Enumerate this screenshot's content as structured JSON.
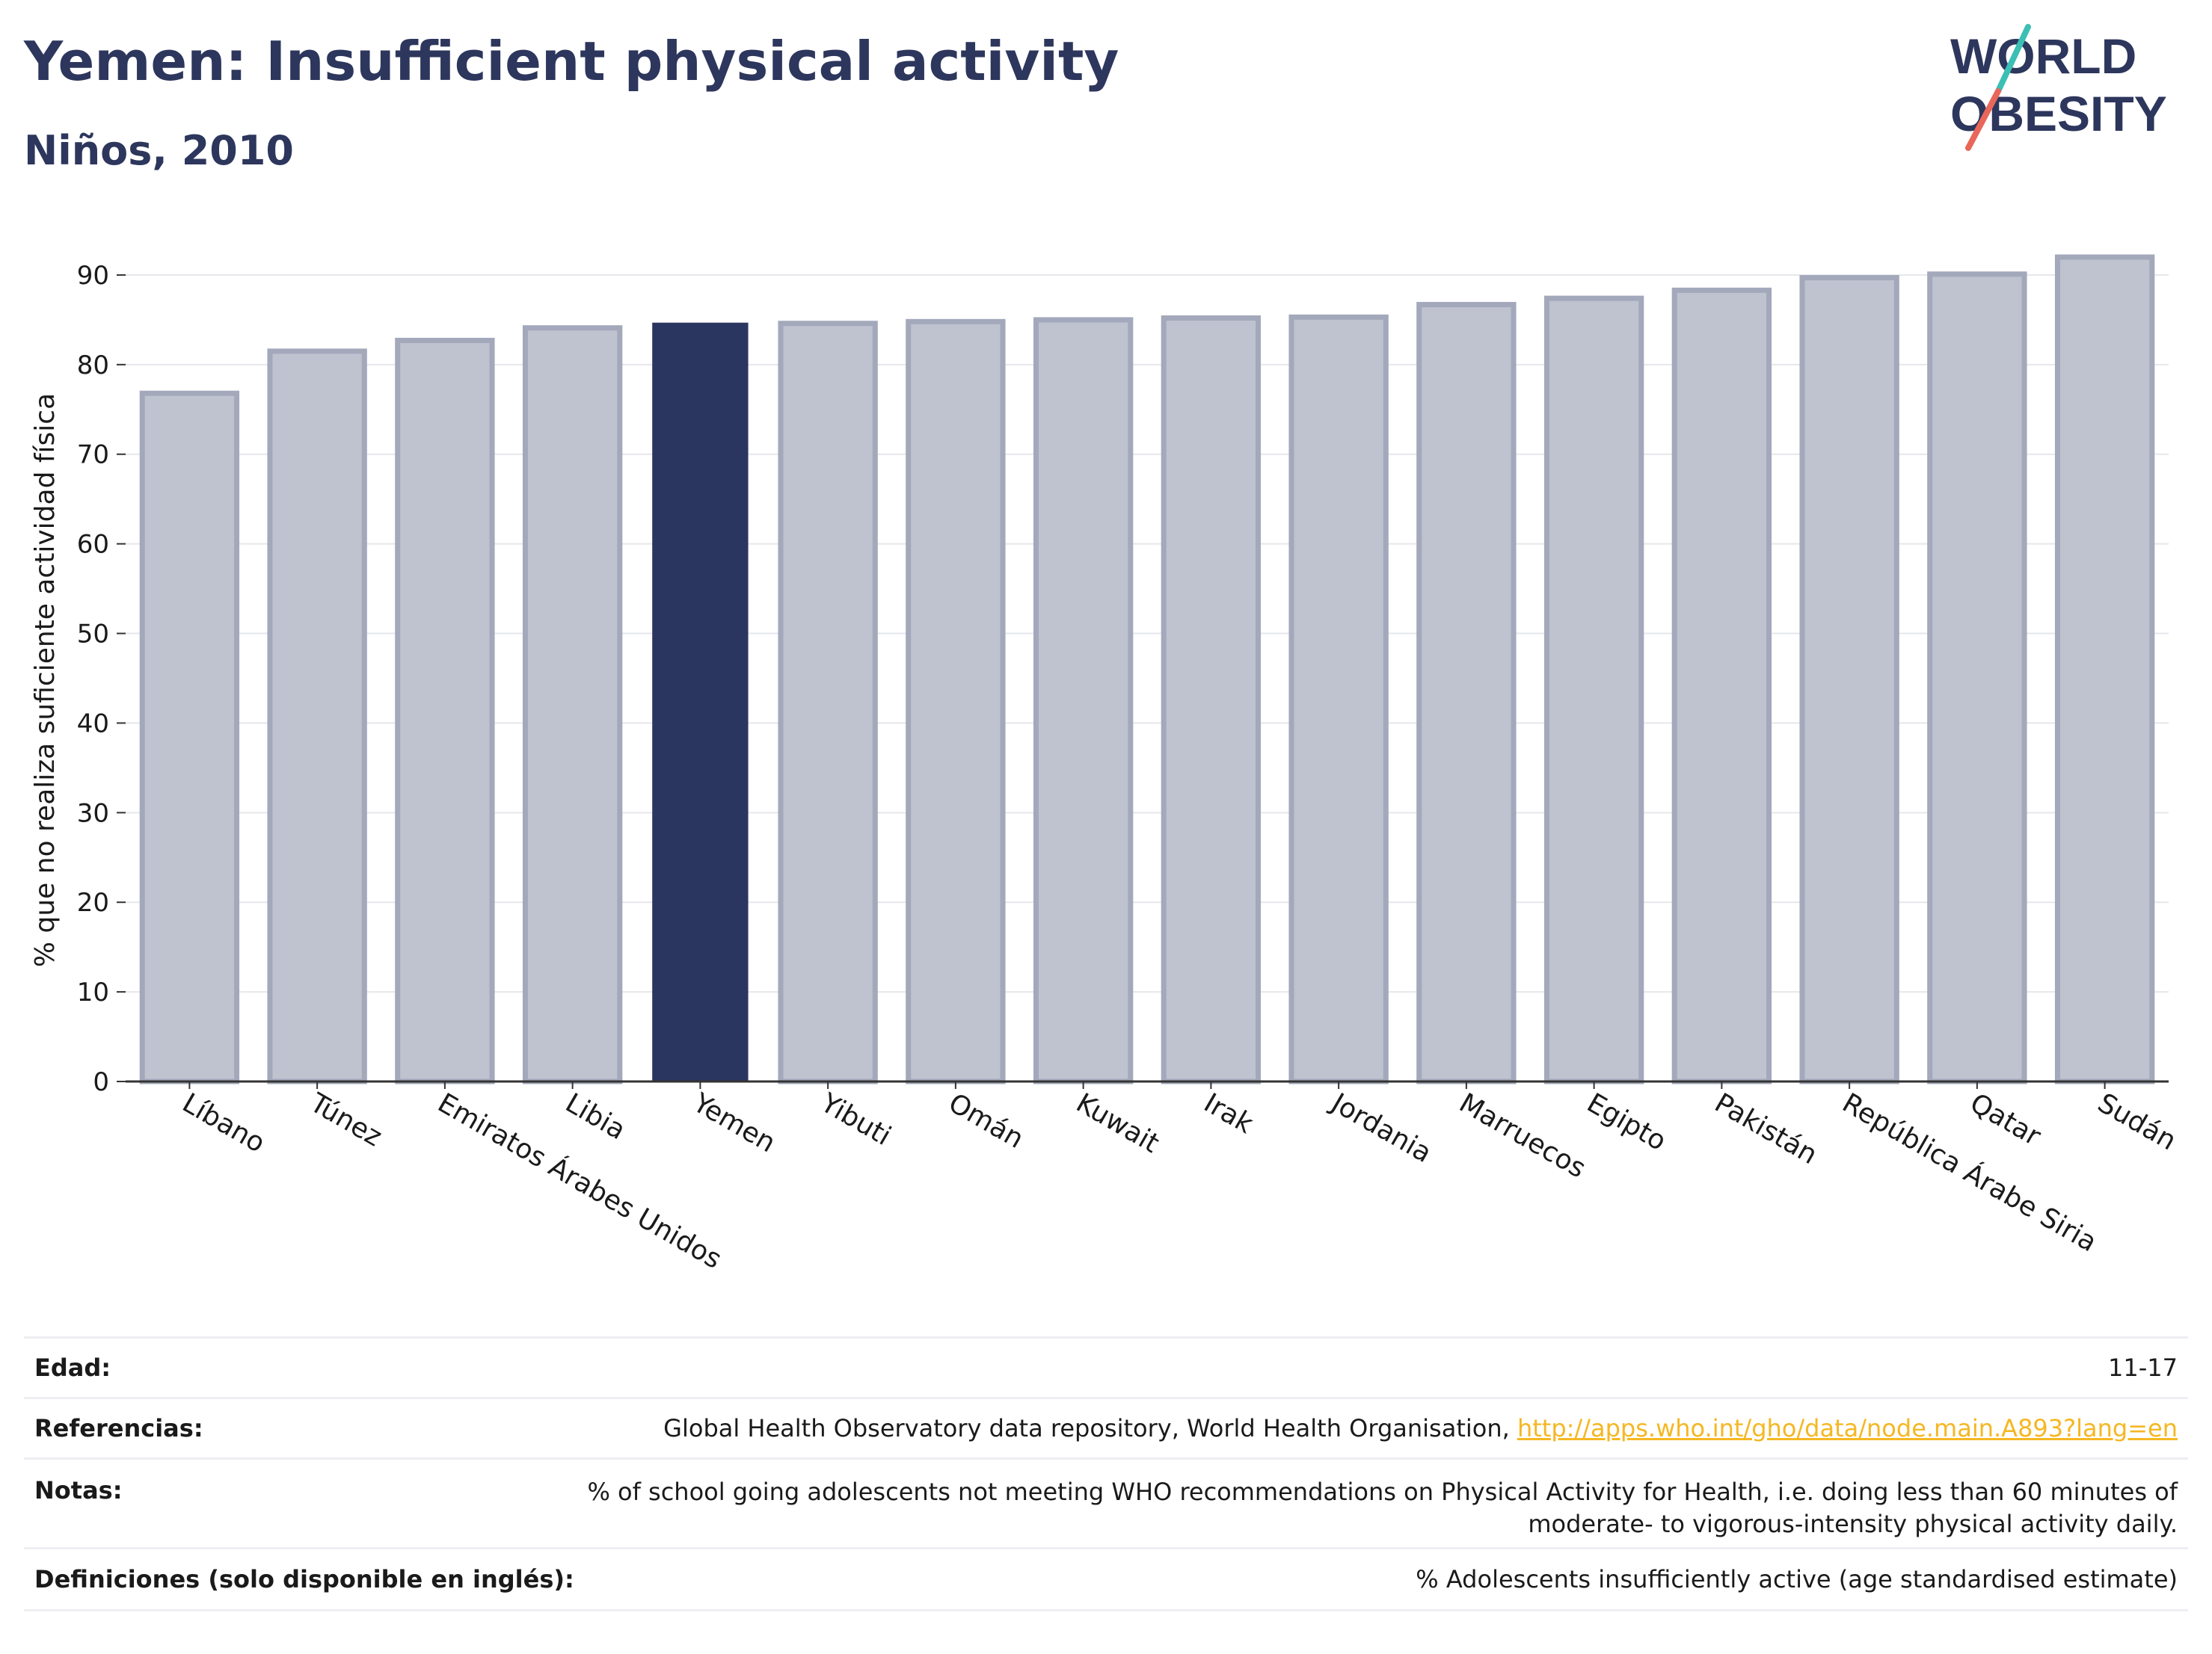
{
  "header": {
    "title": "Yemen: Insufficient physical activity",
    "subtitle": "Niños, 2010"
  },
  "logo": {
    "line1": "WORLD",
    "line2": "OBESITY"
  },
  "colors": {
    "highlight_bar": "#2b3660",
    "other_bar_fill": "#bfc2cf",
    "other_bar_stroke": "#a3a8bb",
    "title": "#2d365c",
    "link": "#f5b722",
    "logo_teal": "#3cbfb4",
    "logo_red": "#e8675a"
  },
  "chart_data": {
    "type": "bar",
    "categories": [
      "Líbano",
      "Túnez",
      "Emiratos Árabes Unidos",
      "Libia",
      "Yemen",
      "Yibuti",
      "Omán",
      "Kuwait",
      "Irak",
      "Jordania",
      "Marruecos",
      "Egipto",
      "Pakistán",
      "República Árabe Siria",
      "Qatar",
      "Sudán"
    ],
    "values": [
      76.8,
      81.5,
      82.7,
      84.1,
      84.6,
      84.6,
      84.8,
      85.0,
      85.2,
      85.3,
      86.7,
      87.4,
      88.3,
      89.7,
      90.1,
      92.0
    ],
    "highlight": "Yemen",
    "ylabel": "% que no realiza suficiente actividad física",
    "xlabel": "",
    "ylim": [
      0,
      94
    ],
    "yticks": [
      0,
      10,
      20,
      30,
      40,
      50,
      60,
      70,
      80,
      90
    ],
    "grid": true
  },
  "meta": [
    {
      "label": "Edad:",
      "value": "11-17"
    },
    {
      "label": "Referencias:",
      "value": "Global Health Observatory data repository, World Health Organisation, ",
      "link": "http://apps.who.int/gho/data/node.main.A893?lang=en"
    },
    {
      "label": "Notas:",
      "value": "% of school going adolescents not meeting WHO recommendations on Physical Activity for Health, i.e. doing less than 60 minutes of moderate- to vigorous-intensity physical activity daily."
    },
    {
      "label": "Definiciones (solo disponible en inglés):",
      "value": "% Adolescents insufficiently active (age standardised estimate)"
    }
  ]
}
